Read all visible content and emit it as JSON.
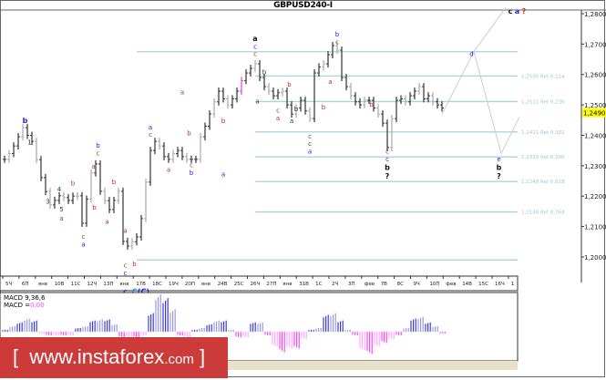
{
  "window": {
    "title": "GBPUSD240-I"
  },
  "logo": {
    "bracket_open": "[",
    "text": "www.instaforex",
    "suffix": ".com",
    "bracket_close": "]"
  },
  "macd_panel": {
    "label": "MACD 9,36,6",
    "value_label": "MACD =",
    "value": "0,00"
  },
  "colors": {
    "bar": "#333333",
    "bar_alt": "#aaaaaa",
    "fib": "#a8d4e0",
    "macd_pos": "#3b3bdd",
    "macd_pos_alt": "#9a9ae8",
    "macd_neg": "#ff44ff",
    "macd_neg_alt": "#ffaaff",
    "current_price_bg": "#ffff00",
    "logo_bg": "#cc3a3a",
    "projection": "#cccccc"
  },
  "chart_data": {
    "type": "bar",
    "symbol": "GBPUSD",
    "timeframe": "H4",
    "ylim": [
      1.195,
      1.283
    ],
    "yticks": [
      "1,2800",
      "1,2700",
      "1,2600",
      "1,2500",
      "1,2400",
      "1,2300",
      "1,2200",
      "1,2100",
      "1,2000"
    ],
    "ytick_values": [
      1.28,
      1.27,
      1.26,
      1.25,
      1.24,
      1.23,
      1.22,
      1.21,
      1.2
    ],
    "current_price": {
      "value": 1.249,
      "label": "1,2490"
    },
    "xticks": [
      "5Ч",
      "6П",
      "янв",
      "10В",
      "11С",
      "12Ч",
      "13П",
      "янв",
      "17В",
      "18С",
      "19Ч",
      "20П",
      "янв",
      "24В",
      "25С",
      "26Ч",
      "27П",
      "янв",
      "31В",
      "1С",
      "2Ч",
      "3П",
      "фев",
      "7В",
      "8С",
      "9Ч",
      "10П",
      "фев",
      "14В",
      "15С",
      "16Ч",
      "1"
    ],
    "closes": [
      1.2321,
      1.234,
      1.2365,
      1.2395,
      1.2425,
      1.24,
      1.238,
      1.232,
      1.2261,
      1.2215,
      1.2171,
      1.2186,
      1.2201,
      1.2195,
      1.2186,
      1.22,
      1.2201,
      1.2111,
      1.219,
      1.2276,
      1.2306,
      1.2216,
      1.2185,
      1.2156,
      1.2186,
      1.2216,
      1.2051,
      1.2036,
      1.205,
      1.2066,
      1.2126,
      1.2246,
      1.235,
      1.238,
      1.2365,
      1.233,
      1.2321,
      1.234,
      1.235,
      1.233,
      1.2321,
      1.2321,
      1.2321,
      1.2395,
      1.243,
      1.247,
      1.251,
      1.2545,
      1.252,
      1.25,
      1.252,
      1.2545,
      1.258,
      1.2605,
      1.262,
      1.2635,
      1.259,
      1.256,
      1.2545,
      1.253,
      1.254,
      1.2545,
      1.25,
      1.247,
      1.249,
      1.2515,
      1.248,
      1.2455,
      1.2605,
      1.2625,
      1.2635,
      1.2665,
      1.2695,
      1.268,
      1.259,
      1.256,
      1.253,
      1.251,
      1.25,
      1.2515,
      1.2515,
      1.249,
      1.247,
      1.244,
      1.236,
      1.2455,
      1.2515,
      1.252,
      1.251,
      1.253,
      1.2545,
      1.256,
      1.252,
      1.253,
      1.251,
      1.25,
      1.249
    ],
    "fib_levels": [
      {
        "price": 1.2675,
        "label": ""
      },
      {
        "price": 1.2595,
        "label": "1,2595 Ret 0,114"
      },
      {
        "price": 1.2511,
        "label": "1,2511 Ret 0,236"
      },
      {
        "price": 1.2411,
        "label": "1,2411 Ret 0,382"
      },
      {
        "price": 1.2329,
        "label": "1,2329 Ret 0,500"
      },
      {
        "price": 1.2248,
        "label": "1,2248 Ret 0,618"
      },
      {
        "price": 1.2148,
        "label": "1,2148 Ret 0,764"
      },
      {
        "price": 1.199,
        "label": ""
      }
    ],
    "projection": [
      [
        [
          96,
          1.247
        ],
        [
          103,
          1.2675
        ],
        [
          110,
          1.282
        ]
      ],
      [
        [
          103,
          1.2675
        ],
        [
          109,
          1.234
        ],
        [
          113,
          1.246
        ]
      ]
    ],
    "wave_labels": [
      {
        "bar": 4.5,
        "price": 1.244,
        "text": "b",
        "color": "#2222dd",
        "bold": true
      },
      {
        "bar": 5.5,
        "price": 1.237,
        "text": "1",
        "color": "#333"
      },
      {
        "bar": 9.5,
        "price": 1.2175,
        "text": "3",
        "color": "#333"
      },
      {
        "bar": 12,
        "price": 1.2215,
        "text": "4",
        "color": "#333"
      },
      {
        "bar": 12.5,
        "price": 1.215,
        "text": "5",
        "color": "#333"
      },
      {
        "bar": 12.5,
        "price": 1.212,
        "text": "a",
        "color": "#a33"
      },
      {
        "bar": 15,
        "price": 1.2235,
        "text": "b",
        "color": "#a33"
      },
      {
        "bar": 17.3,
        "price": 1.206,
        "text": "c",
        "color": "#a33"
      },
      {
        "bar": 17.3,
        "price": 1.2035,
        "text": "a",
        "color": "#22d"
      },
      {
        "bar": 19.5,
        "price": 1.229,
        "text": "a",
        "color": "#a33"
      },
      {
        "bar": 19.7,
        "price": 1.2155,
        "text": "b",
        "color": "#a33"
      },
      {
        "bar": 20.5,
        "price": 1.236,
        "text": "b",
        "color": "#22d"
      },
      {
        "bar": 20.5,
        "price": 1.234,
        "text": "c",
        "color": "#a33"
      },
      {
        "bar": 22.5,
        "price": 1.211,
        "text": "a",
        "color": "#a33"
      },
      {
        "bar": 24,
        "price": 1.224,
        "text": "b",
        "color": "#a33"
      },
      {
        "bar": 26.5,
        "price": 1.208,
        "text": "a",
        "color": "#a33"
      },
      {
        "bar": 28.5,
        "price": 1.197,
        "text": "b",
        "color": "#a33"
      },
      {
        "bar": 26.5,
        "price": 1.1965,
        "text": "c",
        "color": "#a33"
      },
      {
        "bar": 26.5,
        "price": 1.194,
        "text": "c",
        "color": "#22d"
      },
      {
        "bar": 26.5,
        "price": 1.1915,
        "text": "c",
        "color": "#22d",
        "bold": true
      },
      {
        "bar": 28.5,
        "price": 1.1915,
        "text": "C",
        "color": "#1e9ae0",
        "bold": true
      },
      {
        "bar": 30.5,
        "price": 1.1915,
        "text": "(C)",
        "color": "#22d",
        "bold": true
      },
      {
        "bar": 32,
        "price": 1.242,
        "text": "a",
        "color": "#22d"
      },
      {
        "bar": 32,
        "price": 1.2395,
        "text": "c",
        "color": "#a33"
      },
      {
        "bar": 36,
        "price": 1.228,
        "text": "a",
        "color": "#a33"
      },
      {
        "bar": 40.5,
        "price": 1.24,
        "text": "b",
        "color": "#a33"
      },
      {
        "bar": 41,
        "price": 1.2295,
        "text": "c",
        "color": "#a33"
      },
      {
        "bar": 41,
        "price": 1.227,
        "text": "b",
        "color": "#22d"
      },
      {
        "bar": 48,
        "price": 1.244,
        "text": "b",
        "color": "#a33"
      },
      {
        "bar": 48,
        "price": 1.2265,
        "text": "a",
        "color": "#22d"
      },
      {
        "bar": 39,
        "price": 1.2535,
        "text": "a",
        "color": "#a33"
      },
      {
        "bar": 55,
        "price": 1.271,
        "text": "a",
        "color": "#111",
        "bold": true
      },
      {
        "bar": 55,
        "price": 1.2685,
        "text": "c",
        "color": "#22d"
      },
      {
        "bar": 55,
        "price": 1.266,
        "text": "c",
        "color": "#a33"
      },
      {
        "bar": 57,
        "price": 1.26,
        "text": "b",
        "color": "#333"
      },
      {
        "bar": 55.5,
        "price": 1.2505,
        "text": "a",
        "color": "#333"
      },
      {
        "bar": 60,
        "price": 1.2475,
        "text": "c",
        "color": "#a33"
      },
      {
        "bar": 60,
        "price": 1.245,
        "text": "a",
        "color": "#a33"
      },
      {
        "bar": 62.5,
        "price": 1.256,
        "text": "b",
        "color": "#a33"
      },
      {
        "bar": 64,
        "price": 1.248,
        "text": "b",
        "color": "#333"
      },
      {
        "bar": 63,
        "price": 1.244,
        "text": "a",
        "color": "#333"
      },
      {
        "bar": 71.5,
        "price": 1.257,
        "text": "a",
        "color": "#a33"
      },
      {
        "bar": 70,
        "price": 1.2485,
        "text": "b",
        "color": "#a33"
      },
      {
        "bar": 67,
        "price": 1.239,
        "text": "c",
        "color": "#a33"
      },
      {
        "bar": 67,
        "price": 1.2365,
        "text": "c",
        "color": "#333"
      },
      {
        "bar": 67,
        "price": 1.234,
        "text": "a",
        "color": "#22d"
      },
      {
        "bar": 73,
        "price": 1.2725,
        "text": "b",
        "color": "#22d"
      },
      {
        "bar": 73,
        "price": 1.27,
        "text": "c",
        "color": "#a33"
      },
      {
        "bar": 80.5,
        "price": 1.2495,
        "text": "b",
        "color": "#a33"
      },
      {
        "bar": 84,
        "price": 1.234,
        "text": "c",
        "color": "#a33"
      },
      {
        "bar": 84,
        "price": 1.2315,
        "text": "c",
        "color": "#22d"
      },
      {
        "bar": 84,
        "price": 1.229,
        "text": "b",
        "color": "#111",
        "bold": true
      },
      {
        "bar": 84,
        "price": 1.226,
        "text": "?",
        "color": "#111",
        "bold": true
      },
      {
        "bar": 102.5,
        "price": 1.266,
        "text": "d",
        "color": "#22d"
      },
      {
        "bar": 108.5,
        "price": 1.2315,
        "text": "e",
        "color": "#22d"
      },
      {
        "bar": 108.5,
        "price": 1.229,
        "text": "b",
        "color": "#111",
        "bold": true
      },
      {
        "bar": 108.5,
        "price": 1.226,
        "text": "?",
        "color": "#111",
        "bold": true
      },
      {
        "bar": 111,
        "price": 1.28,
        "text": "c",
        "color": "#111",
        "bold": true
      },
      {
        "bar": 112.5,
        "price": 1.28,
        "text": "a",
        "color": "#22d",
        "bold": true
      },
      {
        "bar": 114,
        "price": 1.28,
        "text": "?",
        "color": "#ee2222",
        "bold": true
      }
    ],
    "macd": {
      "ylim": [
        -0.8,
        1.1
      ],
      "values": [
        0.05,
        0.15,
        0.25,
        0.35,
        0.3,
        -0.05,
        -0.1,
        -0.1,
        -0.1,
        -0.1,
        0.1,
        0.15,
        0.3,
        0.33,
        0.33,
        0.2,
        -0.15,
        -0.15,
        -0.15,
        -0.1,
        0.5,
        1.0,
        0.9,
        0.6,
        -0.1,
        -0.15,
        0.05,
        0.1,
        0.2,
        0.3,
        0.3,
        0.05,
        -0.15,
        -0.15,
        0.25,
        0.25,
        -0.1,
        -0.4,
        -0.55,
        -0.45,
        -0.45,
        -0.2,
        0.05,
        0.1,
        0.45,
        0.5,
        0.3,
        0.05,
        -0.1,
        -0.5,
        -0.6,
        -0.4,
        -0.3,
        -0.2,
        -0.1,
        0.1,
        0.35,
        0.4,
        0.25,
        0.15,
        -0.05
      ]
    }
  }
}
